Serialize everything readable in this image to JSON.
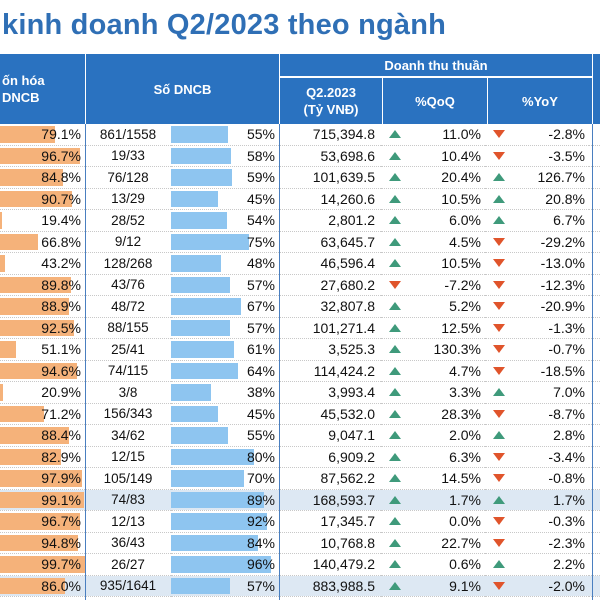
{
  "title": "kinh doanh Q2/2023 theo ngành",
  "colors": {
    "header": "#2a72c0",
    "title": "#2f6fb5",
    "orange": "#f5b27a",
    "blue": "#8ec5f0",
    "up": "#3f9a7b",
    "down": "#e0542b",
    "highlight": "#dde8f3"
  },
  "headers": {
    "von_hoa_line1": "ốn hóa",
    "von_hoa_line2": "DNCB",
    "so_dncb": "Số DNCB",
    "doanh_thu": "Doanh thu thuần",
    "q2_line1": "Q2.2023",
    "q2_line2": "(Tỷ VNĐ)",
    "qoq": "%QoQ",
    "yoy": "%YoY"
  },
  "rows": [
    {
      "cap": "79.1%",
      "cap_v": 79.1,
      "dncb": "861/1558",
      "pct": "55%",
      "pct_v": 55,
      "rev": "715,394.8",
      "qoq": "11.0%",
      "qoq_dir": "up",
      "yoy": "-2.8%",
      "yoy_dir": "down",
      "hl": false
    },
    {
      "cap": "96.7%",
      "cap_v": 96.7,
      "dncb": "19/33",
      "pct": "58%",
      "pct_v": 58,
      "rev": "53,698.6",
      "qoq": "10.4%",
      "qoq_dir": "up",
      "yoy": "-3.5%",
      "yoy_dir": "down",
      "hl": false
    },
    {
      "cap": "84.8%",
      "cap_v": 84.8,
      "dncb": "76/128",
      "pct": "59%",
      "pct_v": 59,
      "rev": "101,639.5",
      "qoq": "20.4%",
      "qoq_dir": "up",
      "yoy": "126.7%",
      "yoy_dir": "up",
      "hl": false
    },
    {
      "cap": "90.7%",
      "cap_v": 90.7,
      "dncb": "13/29",
      "pct": "45%",
      "pct_v": 45,
      "rev": "14,260.6",
      "qoq": "10.5%",
      "qoq_dir": "up",
      "yoy": "20.8%",
      "yoy_dir": "up",
      "hl": false
    },
    {
      "cap": "19.4%",
      "cap_v": 19.4,
      "dncb": "28/52",
      "pct": "54%",
      "pct_v": 54,
      "rev": "2,801.2",
      "qoq": "6.0%",
      "qoq_dir": "up",
      "yoy": "6.7%",
      "yoy_dir": "up",
      "hl": false
    },
    {
      "cap": "66.8%",
      "cap_v": 66.8,
      "dncb": "9/12",
      "pct": "75%",
      "pct_v": 75,
      "rev": "63,645.7",
      "qoq": "4.5%",
      "qoq_dir": "up",
      "yoy": "-29.2%",
      "yoy_dir": "down",
      "hl": false
    },
    {
      "cap": "43.2%",
      "cap_v": 43.2,
      "dncb": "128/268",
      "pct": "48%",
      "pct_v": 48,
      "rev": "46,596.4",
      "qoq": "10.5%",
      "qoq_dir": "up",
      "yoy": "-13.0%",
      "yoy_dir": "down",
      "hl": false
    },
    {
      "cap": "89.8%",
      "cap_v": 89.8,
      "dncb": "43/76",
      "pct": "57%",
      "pct_v": 57,
      "rev": "27,680.2",
      "qoq": "-7.2%",
      "qoq_dir": "down",
      "yoy": "-12.3%",
      "yoy_dir": "down",
      "hl": false
    },
    {
      "cap": "88.9%",
      "cap_v": 88.9,
      "dncb": "48/72",
      "pct": "67%",
      "pct_v": 67,
      "rev": "32,807.8",
      "qoq": "5.2%",
      "qoq_dir": "up",
      "yoy": "-20.9%",
      "yoy_dir": "down",
      "hl": false
    },
    {
      "cap": "92.5%",
      "cap_v": 92.5,
      "dncb": "88/155",
      "pct": "57%",
      "pct_v": 57,
      "rev": "101,271.4",
      "qoq": "12.5%",
      "qoq_dir": "up",
      "yoy": "-1.3%",
      "yoy_dir": "down",
      "hl": false
    },
    {
      "cap": "51.1%",
      "cap_v": 51.1,
      "dncb": "25/41",
      "pct": "61%",
      "pct_v": 61,
      "rev": "3,525.3",
      "qoq": "130.3%",
      "qoq_dir": "up",
      "yoy": "-0.7%",
      "yoy_dir": "down",
      "hl": false
    },
    {
      "cap": "94.6%",
      "cap_v": 94.6,
      "dncb": "74/115",
      "pct": "64%",
      "pct_v": 64,
      "rev": "114,424.2",
      "qoq": "4.7%",
      "qoq_dir": "up",
      "yoy": "-18.5%",
      "yoy_dir": "down",
      "hl": false
    },
    {
      "cap": "20.9%",
      "cap_v": 20.9,
      "dncb": "3/8",
      "pct": "38%",
      "pct_v": 38,
      "rev": "3,993.4",
      "qoq": "3.3%",
      "qoq_dir": "up",
      "yoy": "7.0%",
      "yoy_dir": "up",
      "hl": false
    },
    {
      "cap": "71.2%",
      "cap_v": 71.2,
      "dncb": "156/343",
      "pct": "45%",
      "pct_v": 45,
      "rev": "45,532.0",
      "qoq": "28.3%",
      "qoq_dir": "up",
      "yoy": "-8.7%",
      "yoy_dir": "down",
      "hl": false
    },
    {
      "cap": "88.4%",
      "cap_v": 88.4,
      "dncb": "34/62",
      "pct": "55%",
      "pct_v": 55,
      "rev": "9,047.1",
      "qoq": "2.0%",
      "qoq_dir": "up",
      "yoy": "2.8%",
      "yoy_dir": "up",
      "hl": false
    },
    {
      "cap": "82.9%",
      "cap_v": 82.9,
      "dncb": "12/15",
      "pct": "80%",
      "pct_v": 80,
      "rev": "6,909.2",
      "qoq": "6.3%",
      "qoq_dir": "up",
      "yoy": "-3.4%",
      "yoy_dir": "down",
      "hl": false
    },
    {
      "cap": "97.9%",
      "cap_v": 97.9,
      "dncb": "105/149",
      "pct": "70%",
      "pct_v": 70,
      "rev": "87,562.2",
      "qoq": "14.5%",
      "qoq_dir": "up",
      "yoy": "-0.8%",
      "yoy_dir": "down",
      "hl": false
    },
    {
      "cap": "99.1%",
      "cap_v": 99.1,
      "dncb": "74/83",
      "pct": "89%",
      "pct_v": 89,
      "rev": "168,593.7",
      "qoq": "1.7%",
      "qoq_dir": "up",
      "yoy": "1.7%",
      "yoy_dir": "up",
      "hl": true
    },
    {
      "cap": "96.7%",
      "cap_v": 96.7,
      "dncb": "12/13",
      "pct": "92%",
      "pct_v": 92,
      "rev": "17,345.7",
      "qoq": "0.0%",
      "qoq_dir": "up",
      "yoy": "-0.3%",
      "yoy_dir": "down",
      "hl": false
    },
    {
      "cap": "94.8%",
      "cap_v": 94.8,
      "dncb": "36/43",
      "pct": "84%",
      "pct_v": 84,
      "rev": "10,768.8",
      "qoq": "22.7%",
      "qoq_dir": "up",
      "yoy": "-2.3%",
      "yoy_dir": "down",
      "hl": false
    },
    {
      "cap": "99.7%",
      "cap_v": 99.7,
      "dncb": "26/27",
      "pct": "96%",
      "pct_v": 96,
      "rev": "140,479.2",
      "qoq": "0.6%",
      "qoq_dir": "up",
      "yoy": "2.2%",
      "yoy_dir": "up",
      "hl": false
    },
    {
      "cap": "86.0%",
      "cap_v": 86.0,
      "dncb": "935/1641",
      "pct": "57%",
      "pct_v": 57,
      "rev": "883,988.5",
      "qoq": "9.1%",
      "qoq_dir": "up",
      "yoy": "-2.0%",
      "yoy_dir": "down",
      "hl": true
    }
  ]
}
